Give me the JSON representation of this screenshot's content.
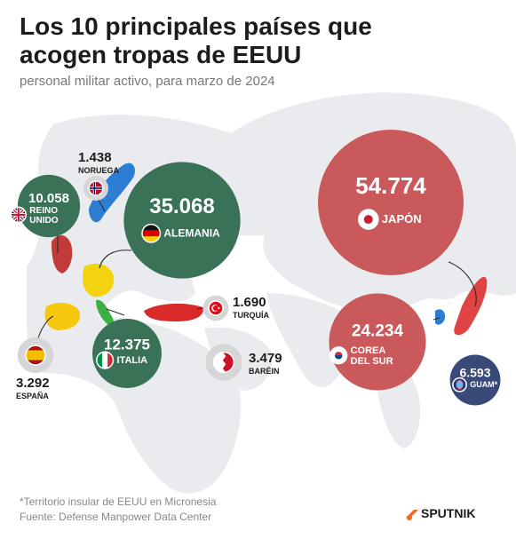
{
  "title_line1": "Los 10 principales países que",
  "title_line2": "acogen tropas de EEUU",
  "subtitle": "personal militar activo, para marzo de 2024",
  "footnote_line1": "*Territorio insular de EEUU en Micronesia",
  "footnote_line2": "Fuente: Defense Manpower Data Center",
  "brand": "SPUTNIK",
  "colors": {
    "map": "#e9ebee",
    "bubble_red": "#c9595a",
    "bubble_green": "#3a7258",
    "bubble_navy": "#3a4a78",
    "bubble_gray": "#d6d6d6"
  },
  "chart_data": {
    "type": "bubble",
    "title": "Los 10 principales países que acogen tropas de EEUU",
    "subtitle": "personal militar activo, para marzo de 2024",
    "series": [
      {
        "country": "JAPÓN",
        "value": 54774,
        "label": "54.774",
        "icon": "japan-flag-icon"
      },
      {
        "country": "ALEMANIA",
        "value": 35068,
        "label": "35.068",
        "icon": "germany-flag-icon"
      },
      {
        "country": "COREA DEL SUR",
        "value": 24234,
        "label": "24.234",
        "icon": "south-korea-flag-icon"
      },
      {
        "country": "ITALIA",
        "value": 12375,
        "label": "12.375",
        "icon": "italy-flag-icon"
      },
      {
        "country": "REINO UNIDO",
        "value": 10058,
        "label": "10.058",
        "icon": "uk-flag-icon"
      },
      {
        "country": "GUAM*",
        "value": 6593,
        "label": "6.593",
        "icon": "guam-flag-icon"
      },
      {
        "country": "BARÉIN",
        "value": 3479,
        "label": "3.479",
        "icon": "bahrain-flag-icon"
      },
      {
        "country": "ESPAÑA",
        "value": 3292,
        "label": "3.292",
        "icon": "spain-flag-icon"
      },
      {
        "country": "TURQUÍA",
        "value": 1690,
        "label": "1.690",
        "icon": "turkey-flag-icon"
      },
      {
        "country": "NORUEGA",
        "value": 1438,
        "label": "1.438",
        "icon": "norway-flag-icon"
      }
    ]
  }
}
